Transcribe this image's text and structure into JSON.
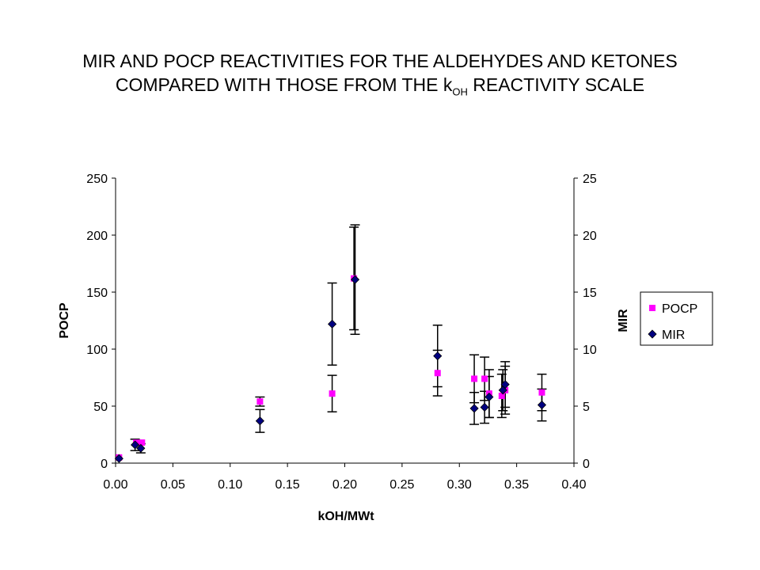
{
  "title": {
    "line1": "MIR AND POCP REACTIVITIES FOR THE ALDEHYDES AND KETONES",
    "line2_before": "COMPARED WITH THOSE FROM THE k",
    "line2_sub": "OH",
    "line2_after": " REACTIVITY SCALE"
  },
  "chart_data": {
    "type": "scatter",
    "xlabel": "kOH/MWt",
    "ylabel": "POCP",
    "y2label": "MIR",
    "xlim": [
      0,
      0.4
    ],
    "ylim": [
      0,
      250
    ],
    "y2lim": [
      0,
      25
    ],
    "x_ticks": [
      "0.00",
      "0.05",
      "0.10",
      "0.15",
      "0.20",
      "0.25",
      "0.30",
      "0.35",
      "0.40"
    ],
    "y_ticks": [
      "0",
      "50",
      "100",
      "150",
      "200",
      "250"
    ],
    "y2_ticks": [
      "0",
      "5",
      "10",
      "15",
      "20",
      "25"
    ],
    "legend_position": "right",
    "grid": false,
    "series": [
      {
        "name": "POCP",
        "axis": "left",
        "marker": "square",
        "color": "#ff00ff",
        "points": [
          {
            "x": 0.003,
            "y": 5
          },
          {
            "x": 0.018,
            "y": 18
          },
          {
            "x": 0.023,
            "y": 18
          },
          {
            "x": 0.126,
            "y": 54,
            "err": 4
          },
          {
            "x": 0.189,
            "y": 61,
            "err": 16
          },
          {
            "x": 0.208,
            "y": 162,
            "err": 45
          },
          {
            "x": 0.281,
            "y": 79,
            "err": 20
          },
          {
            "x": 0.313,
            "y": 74,
            "err": 21
          },
          {
            "x": 0.322,
            "y": 74,
            "err": 19
          },
          {
            "x": 0.326,
            "y": 61,
            "err": 21
          },
          {
            "x": 0.337,
            "y": 59,
            "err": 19
          },
          {
            "x": 0.34,
            "y": 64,
            "err": 21
          },
          {
            "x": 0.372,
            "y": 62,
            "err": 16
          }
        ]
      },
      {
        "name": "MIR",
        "axis": "right",
        "marker": "diamond",
        "color": "#000080",
        "points": [
          {
            "x": 0.003,
            "y": 0.4
          },
          {
            "x": 0.017,
            "y": 1.6,
            "err": 0.5
          },
          {
            "x": 0.022,
            "y": 1.3,
            "err": 0.4
          },
          {
            "x": 0.126,
            "y": 3.7,
            "err": 1.0
          },
          {
            "x": 0.189,
            "y": 12.2,
            "err": 3.6
          },
          {
            "x": 0.209,
            "y": 16.1,
            "err": 4.8
          },
          {
            "x": 0.281,
            "y": 9.4,
            "err": 2.7
          },
          {
            "x": 0.313,
            "y": 4.8,
            "err": 1.4
          },
          {
            "x": 0.322,
            "y": 4.9,
            "err": 1.4
          },
          {
            "x": 0.326,
            "y": 5.8,
            "err": 1.8
          },
          {
            "x": 0.338,
            "y": 6.4,
            "err": 1.8
          },
          {
            "x": 0.34,
            "y": 6.9,
            "err": 2.0
          },
          {
            "x": 0.372,
            "y": 5.1,
            "err": 1.4
          }
        ]
      }
    ]
  }
}
